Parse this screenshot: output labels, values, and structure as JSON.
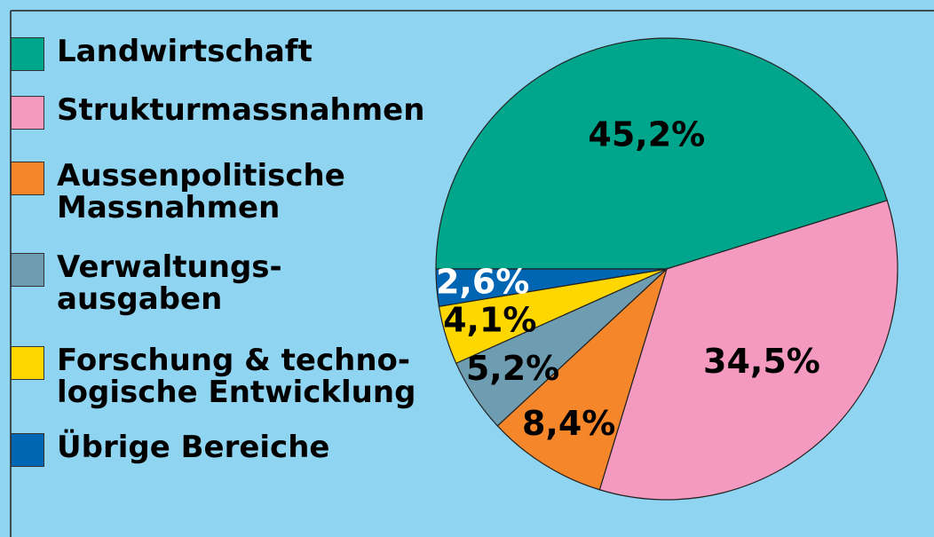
{
  "chart_data": {
    "type": "pie",
    "categories": [
      "Landwirtschaft",
      "Strukturmassnahmen",
      "Aussenpolitische\nMassnahmen",
      "Verwaltungs-\nausgaben",
      "Forschung & techno-\nlogische Entwicklung",
      "Übrige Bereiche"
    ],
    "values": [
      45.2,
      34.5,
      8.4,
      5.2,
      4.1,
      2.6
    ],
    "value_labels": [
      "45,2%",
      "34,5%",
      "8,4%",
      "5,2%",
      "4,1%",
      "2,6%"
    ],
    "colors": [
      "#00a68b",
      "#f49ac1",
      "#f5862a",
      "#6e9cb0",
      "#ffd700",
      "#0066b3"
    ],
    "label_colors": [
      "#000000",
      "#000000",
      "#000000",
      "#000000",
      "#000000",
      "#ffffff"
    ],
    "start_angle": 180,
    "direction": "clockwise"
  }
}
